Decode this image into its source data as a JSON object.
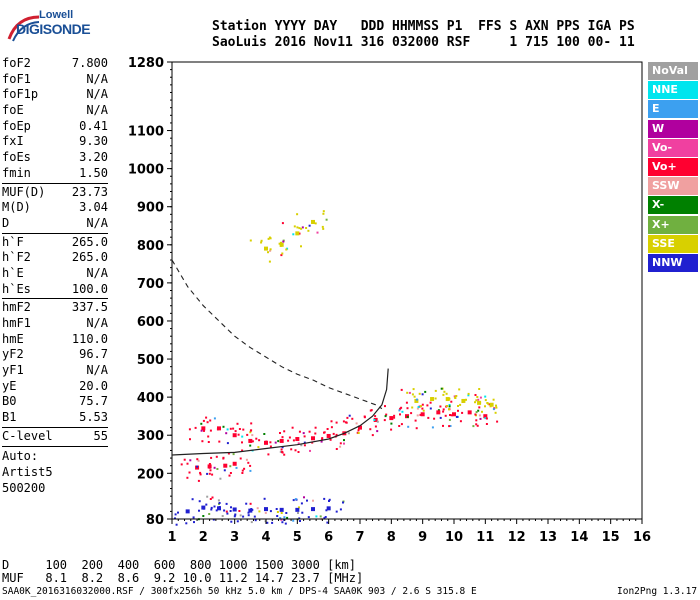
{
  "logo": {
    "line1": "Lowell",
    "line2": "DIGISONDE"
  },
  "header": {
    "line1": "Station YYYY DAY   DDD HHMMSS P1  FFS S AXN PPS IGA PS",
    "line2": "SaoLuis 2016 Nov11 316 032000 RSF     1 715 100 00- 11"
  },
  "params": [
    {
      "group": [
        {
          "key": "foF2",
          "value": "7.800"
        },
        {
          "key": "foF1",
          "value": "N/A"
        },
        {
          "key": "foF1p",
          "value": "N/A"
        },
        {
          "key": "foE",
          "value": "N/A"
        },
        {
          "key": "foEp",
          "value": "0.41"
        },
        {
          "key": "fxI",
          "value": "9.30"
        },
        {
          "key": "foEs",
          "value": "3.20"
        },
        {
          "key": "fmin",
          "value": "1.50"
        }
      ]
    },
    {
      "group": [
        {
          "key": "MUF(D)",
          "value": "23.73"
        },
        {
          "key": "M(D)",
          "value": "3.04"
        },
        {
          "key": "D",
          "value": "N/A"
        }
      ]
    },
    {
      "group": [
        {
          "key": "h`F",
          "value": "265.0"
        },
        {
          "key": "h`F2",
          "value": "265.0"
        },
        {
          "key": "h`E",
          "value": "N/A"
        },
        {
          "key": "h`Es",
          "value": "100.0"
        }
      ]
    },
    {
      "group": [
        {
          "key": "hmF2",
          "value": "337.5"
        },
        {
          "key": "hmF1",
          "value": "N/A"
        },
        {
          "key": "hmE",
          "value": "110.0"
        },
        {
          "key": "yF2",
          "value": "96.7"
        },
        {
          "key": "yF1",
          "value": "N/A"
        },
        {
          "key": "yE",
          "value": "20.0"
        },
        {
          "key": "B0",
          "value": "75.7"
        },
        {
          "key": "B1",
          "value": "5.53"
        }
      ]
    },
    {
      "group": [
        {
          "key": "C-level",
          "value": "55"
        }
      ]
    }
  ],
  "auto": [
    "Auto:",
    "Artist5",
    "500200"
  ],
  "legend": [
    {
      "label": "NoVal",
      "color": "#a0a0a0"
    },
    {
      "label": "NNE",
      "color": "#00e5ee"
    },
    {
      "label": "E",
      "color": "#3ca0f0"
    },
    {
      "label": "W",
      "color": "#b0009e"
    },
    {
      "label": "Vo-",
      "color": "#f040a0"
    },
    {
      "label": "Vo+",
      "color": "#ff0030"
    },
    {
      "label": "SSW",
      "color": "#f0a0a0"
    },
    {
      "label": "X-",
      "color": "#008000"
    },
    {
      "label": "X+",
      "color": "#70b040"
    },
    {
      "label": "SSE",
      "color": "#d8d000"
    },
    {
      "label": "NNW",
      "color": "#2020d0"
    }
  ],
  "bottom": {
    "d_line": "D     100  200  400  600  800 1000 1500 3000 [km]",
    "muf_line": "MUF   8.1  8.2  8.6  9.2 10.0 11.2 14.7 23.7 [MHz]"
  },
  "footer": {
    "left": "SAA0K_2016316032000.RSF / 300fx256h 50 kHz 5.0 km / DPS-4 SAA0K 903 / 2.6 S 315.8 E",
    "right": "Ion2Png 1.3.17"
  },
  "chart_data": {
    "type": "scatter",
    "xlabel": "",
    "ylabel": "",
    "xlim": [
      1,
      16
    ],
    "ylim": [
      80,
      1280
    ],
    "x_ticks": [
      1,
      2,
      3,
      4,
      5,
      6,
      7,
      8,
      9,
      10,
      11,
      12,
      13,
      14,
      15,
      16
    ],
    "y_ticks": [
      80,
      200,
      300,
      400,
      500,
      600,
      700,
      800,
      900,
      1000,
      1100,
      1280
    ],
    "series": [
      {
        "name": "Vo+ trace",
        "color": "#ff0030",
        "description": "O-mode F2 echoes",
        "points": [
          [
            2.0,
            318
          ],
          [
            2.5,
            318
          ],
          [
            3.0,
            300
          ],
          [
            3.5,
            285
          ],
          [
            4.0,
            280
          ],
          [
            4.5,
            285
          ],
          [
            5.0,
            290
          ],
          [
            5.5,
            292
          ],
          [
            6.0,
            298
          ],
          [
            6.5,
            305
          ],
          [
            7.0,
            320
          ],
          [
            7.5,
            340
          ],
          [
            8.0,
            345
          ],
          [
            8.5,
            350
          ],
          [
            9.0,
            355
          ],
          [
            9.5,
            360
          ],
          [
            10.0,
            355
          ],
          [
            10.5,
            360
          ],
          [
            11.0,
            350
          ]
        ]
      },
      {
        "name": "Es echoes",
        "color": "#2020d0",
        "points": [
          [
            1.5,
            100
          ],
          [
            2.0,
            110
          ],
          [
            2.5,
            108
          ],
          [
            3.0,
            105
          ],
          [
            3.5,
            102
          ],
          [
            4.0,
            106
          ],
          [
            4.5,
            104
          ],
          [
            5.0,
            104
          ],
          [
            5.5,
            106
          ],
          [
            6.0,
            108
          ]
        ]
      },
      {
        "name": "low F echoes",
        "color": "#ff0030",
        "points": [
          [
            1.8,
            215
          ],
          [
            2.2,
            218
          ],
          [
            2.7,
            220
          ],
          [
            3.0,
            225
          ]
        ]
      },
      {
        "name": "SSE echoes",
        "color": "#d8d000",
        "points": [
          [
            8.8,
            390
          ],
          [
            9.3,
            395
          ],
          [
            9.8,
            395
          ],
          [
            10.3,
            390
          ],
          [
            10.8,
            385
          ],
          [
            11.2,
            380
          ]
        ]
      },
      {
        "name": "high multiples",
        "color": "#d8d000",
        "points": [
          [
            4.0,
            790
          ],
          [
            4.5,
            800
          ],
          [
            5.0,
            830
          ],
          [
            5.5,
            860
          ]
        ]
      }
    ],
    "profile_solid": [
      [
        1.0,
        248
      ],
      [
        2.0,
        252
      ],
      [
        3.0,
        255
      ],
      [
        4.0,
        265
      ],
      [
        5.0,
        275
      ],
      [
        6.0,
        290
      ],
      [
        6.5,
        305
      ],
      [
        7.0,
        325
      ],
      [
        7.4,
        350
      ],
      [
        7.7,
        380
      ],
      [
        7.85,
        420
      ],
      [
        7.9,
        475
      ]
    ],
    "profile_dashed": [
      [
        1.0,
        760
      ],
      [
        1.5,
        690
      ],
      [
        2.0,
        640
      ],
      [
        2.5,
        600
      ],
      [
        3.0,
        560
      ],
      [
        3.5,
        530
      ],
      [
        4.0,
        505
      ],
      [
        4.5,
        480
      ],
      [
        5.0,
        460
      ],
      [
        5.5,
        445
      ],
      [
        6.0,
        425
      ],
      [
        6.5,
        410
      ],
      [
        7.0,
        395
      ],
      [
        7.5,
        380
      ],
      [
        7.7,
        370
      ]
    ]
  }
}
